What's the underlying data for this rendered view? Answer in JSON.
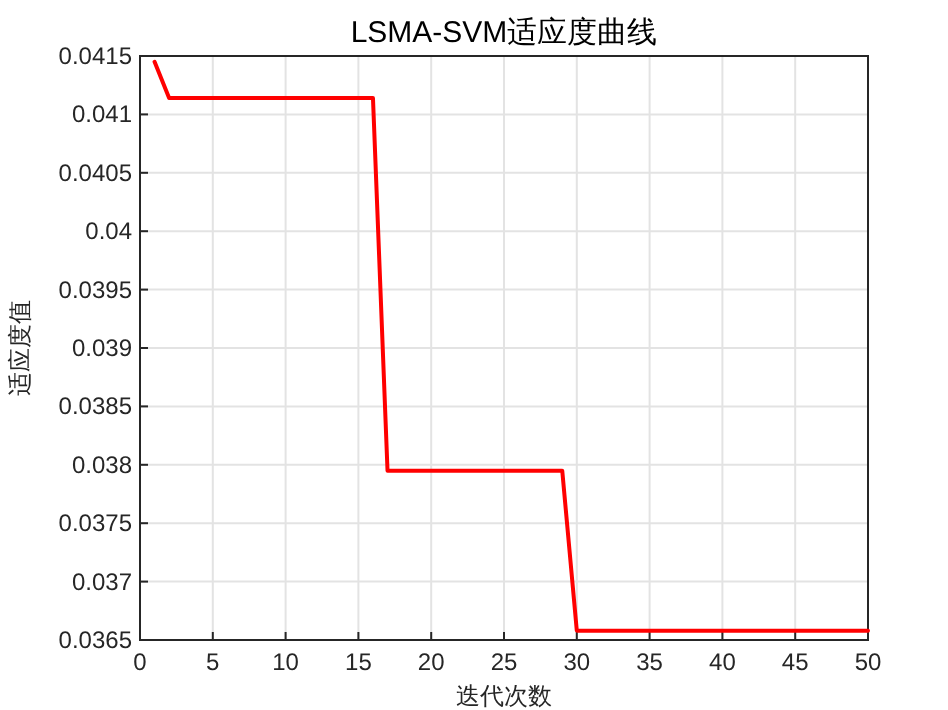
{
  "chart_data": {
    "type": "line",
    "title": "LSMA-SVM适应度曲线",
    "xlabel": "迭代次数",
    "ylabel": "适应度值",
    "x": [
      1,
      2,
      16,
      17,
      29,
      30,
      50
    ],
    "series": [
      {
        "color": "#ff0000",
        "values": [
          0.04145,
          0.04114,
          0.04114,
          0.03795,
          0.03795,
          0.03658,
          0.03658
        ]
      }
    ],
    "xlim": [
      0,
      50
    ],
    "xticks": [
      0,
      5,
      10,
      15,
      20,
      25,
      30,
      35,
      40,
      45,
      50
    ],
    "ylim": [
      0.0365,
      0.0415
    ],
    "yticks": [
      0.0365,
      0.037,
      0.0375,
      0.038,
      0.0385,
      0.039,
      0.0395,
      0.04,
      0.0405,
      0.041,
      0.0415
    ],
    "grid": true,
    "marker": "none",
    "line_style": "solid"
  }
}
